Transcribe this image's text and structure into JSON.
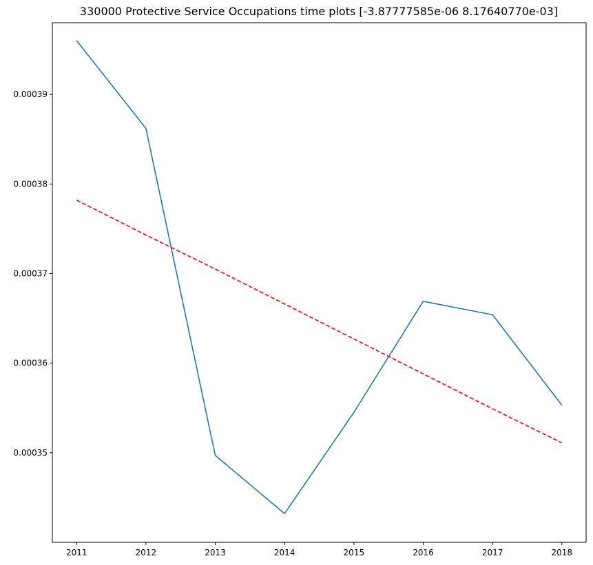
{
  "chart_data": {
    "type": "line",
    "title": "330000 Protective Service Occupations time plots [-3.87777585e-06  8.17640770e-03]",
    "xlabel": "",
    "ylabel": "",
    "x": [
      2011,
      2012,
      2013,
      2014,
      2015,
      2016,
      2017,
      2018
    ],
    "x_tick_labels": [
      "2011",
      "2012",
      "2013",
      "2014",
      "2015",
      "2016",
      "2017",
      "2018"
    ],
    "y_ticks": [
      0.00035,
      0.00036,
      0.00037,
      0.00038,
      0.00039
    ],
    "y_tick_labels": [
      "0.00035",
      "0.00036",
      "0.00037",
      "0.00038",
      "0.00039"
    ],
    "xlim": [
      2010.65,
      2018.35
    ],
    "ylim": [
      0.00034,
      0.000398
    ],
    "grid": false,
    "series": [
      {
        "values": [
          0.000396,
          0.0003862,
          0.0003497,
          0.0003432,
          0.0003545,
          0.0003669,
          0.0003654,
          0.0003553
        ],
        "color": "#1f77b4",
        "style": "solid"
      },
      {
        "values": [
          0.0003782,
          0.0003743,
          0.0003705,
          0.0003666,
          0.0003627,
          0.0003588,
          0.0003549,
          0.0003511
        ],
        "color": "#ff0000",
        "style": "dashed"
      }
    ]
  }
}
